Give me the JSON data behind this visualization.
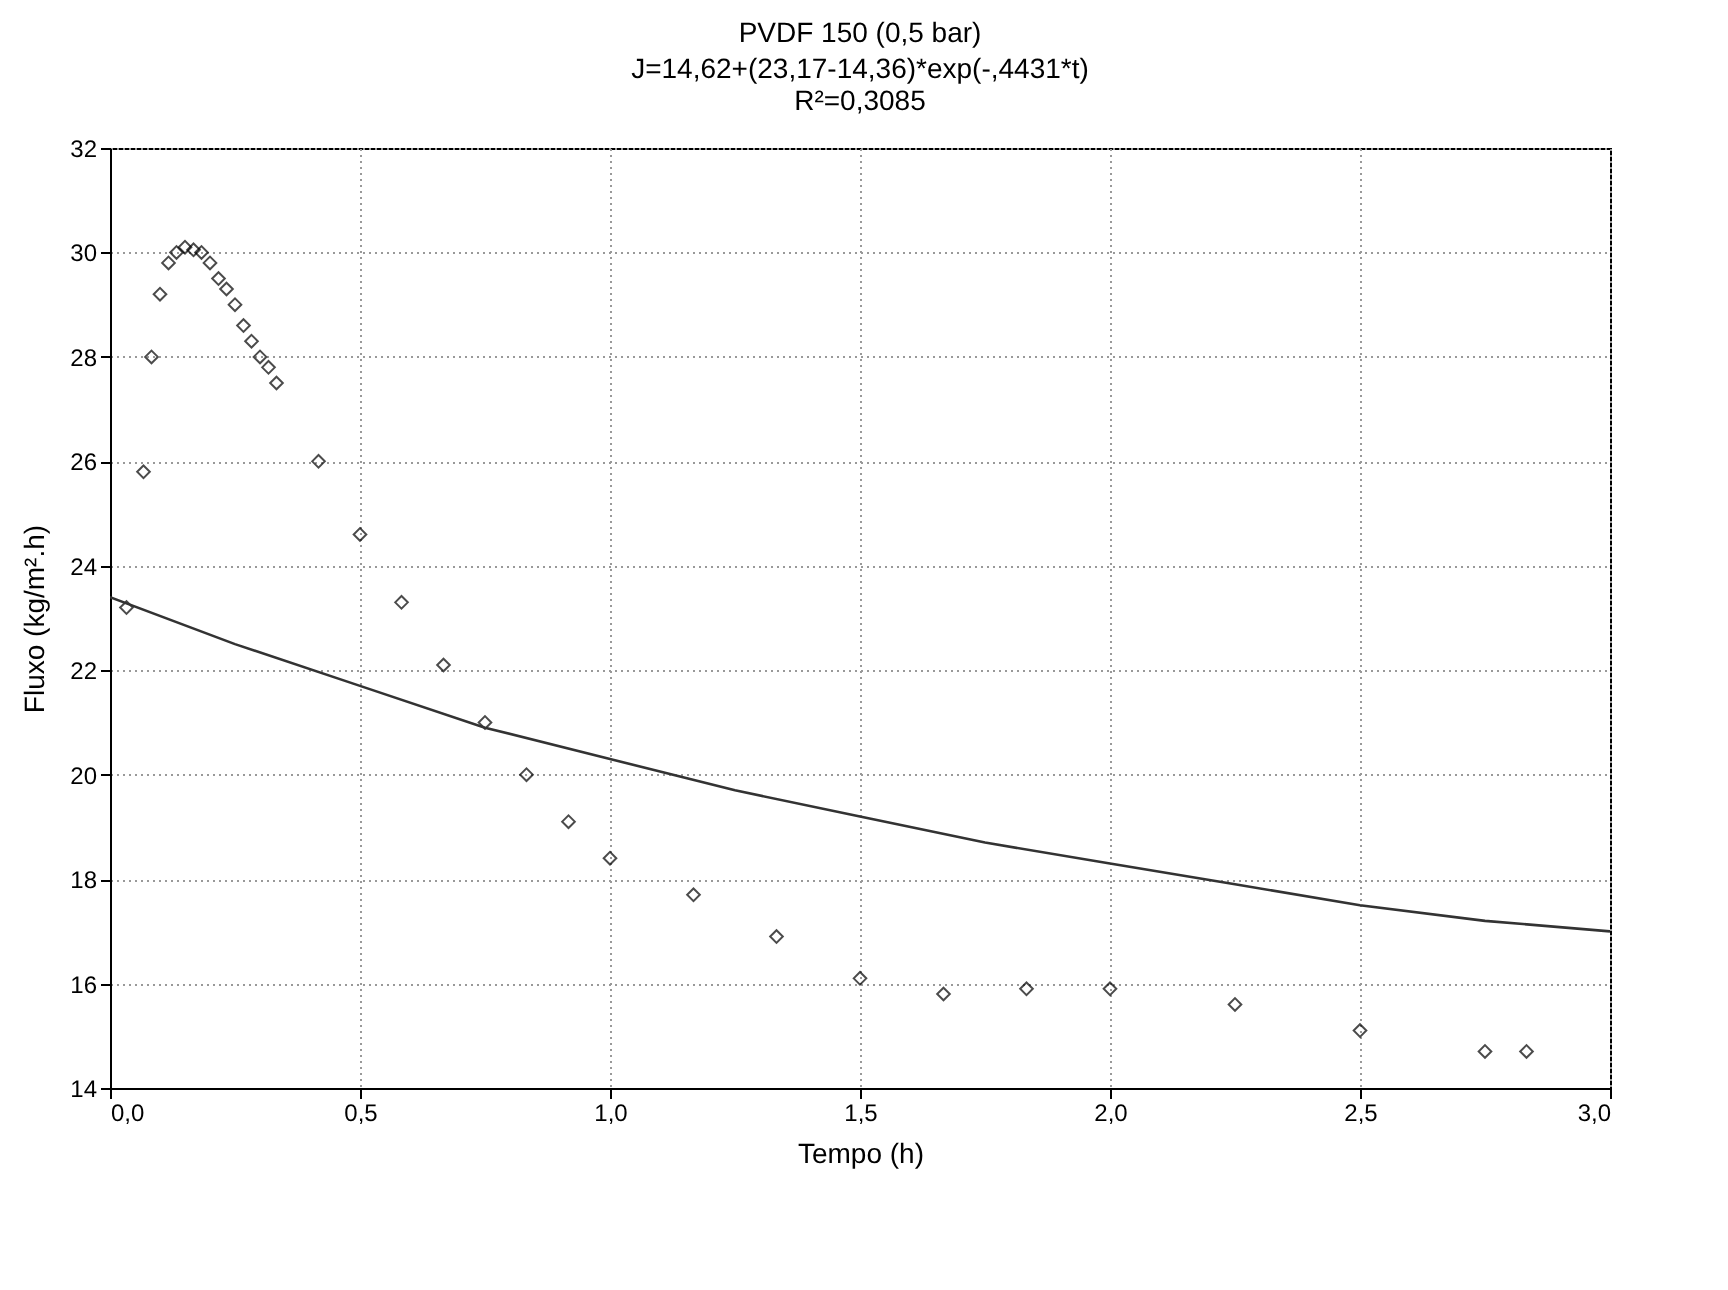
{
  "chart_data": {
    "type": "scatter",
    "title": "PVDF 150 (0,5 bar)",
    "subtitle": "J=14,62+(23,17-14,36)*exp(-,4431*t)\nR²=0,3085",
    "xlabel": "Tempo (h)",
    "ylabel": "Fluxo (kg/m².h)",
    "xlim": [
      0,
      3
    ],
    "ylim": [
      14,
      32
    ],
    "xticks": [
      {
        "value": 0,
        "label": "0,0"
      },
      {
        "value": 0.5,
        "label": "0,5"
      },
      {
        "value": 1,
        "label": "1,0"
      },
      {
        "value": 1.5,
        "label": "1,5"
      },
      {
        "value": 2,
        "label": "2,0"
      },
      {
        "value": 2.5,
        "label": "2,5"
      },
      {
        "value": 3,
        "label": "3,0"
      }
    ],
    "yticks": [
      14,
      16,
      18,
      20,
      22,
      24,
      26,
      28,
      30,
      32
    ],
    "grid": true,
    "marker": "diamond",
    "series": [
      {
        "color": "#000000",
        "x": [
          0.033,
          0.067,
          0.083,
          0.1,
          0.117,
          0.133,
          0.15,
          0.167,
          0.183,
          0.2,
          0.217,
          0.233,
          0.25,
          0.267,
          0.283,
          0.3,
          0.317,
          0.333,
          0.417,
          0.5,
          0.583,
          0.667,
          0.75,
          0.833,
          0.917,
          1.0,
          1.167,
          1.333,
          1.5,
          1.667,
          1.833,
          2.0,
          2.25,
          2.5,
          2.75,
          2.833
        ],
        "values": [
          23.2,
          25.8,
          28.0,
          29.2,
          29.8,
          30.0,
          30.1,
          30.05,
          30.0,
          29.8,
          29.5,
          29.3,
          29.0,
          28.6,
          28.3,
          28.0,
          27.8,
          27.5,
          26.0,
          24.6,
          23.3,
          22.1,
          21.0,
          20.0,
          19.1,
          18.4,
          17.7,
          16.9,
          16.1,
          15.8,
          15.9,
          15.9,
          15.6,
          15.1,
          14.7,
          14.7
        ]
      },
      {
        "type": "line",
        "marker": "none",
        "color": "#333333",
        "line_style": "solid",
        "x": [
          0,
          0.25,
          0.5,
          0.75,
          1.0,
          1.25,
          1.5,
          1.75,
          2.0,
          2.25,
          2.5,
          2.75,
          3.0
        ],
        "values": [
          23.4,
          22.5,
          21.7,
          20.9,
          20.3,
          19.7,
          19.2,
          18.7,
          18.3,
          17.9,
          17.5,
          17.2,
          17.0
        ]
      }
    ]
  }
}
